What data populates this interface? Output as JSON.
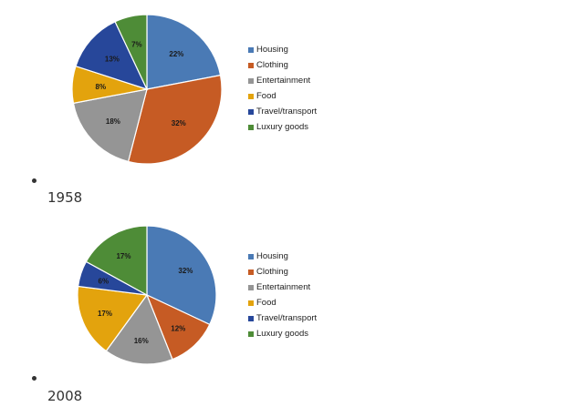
{
  "chart_data": [
    {
      "type": "pie",
      "caption": "1958",
      "categories": [
        "Housing",
        "Clothing",
        "Entertainment",
        "Food",
        "Travel/transport",
        "Luxury goods"
      ],
      "values": [
        22,
        32,
        18,
        8,
        13,
        7
      ],
      "labels": [
        "22%",
        "32%",
        "18%",
        "8%",
        "13%",
        "7%"
      ],
      "colors": [
        "#4a7ab5",
        "#c65b24",
        "#959595",
        "#e3a30d",
        "#27479a",
        "#4e8c37"
      ],
      "legend_position": "right"
    },
    {
      "type": "pie",
      "caption": "2008",
      "categories": [
        "Housing",
        "Clothing",
        "Entertainment",
        "Food",
        "Travel/transport",
        "Luxury goods"
      ],
      "values": [
        32,
        12,
        16,
        17,
        6,
        17
      ],
      "labels": [
        "32%",
        "12%",
        "16%",
        "17%",
        "6%",
        "17%"
      ],
      "colors": [
        "#4a7ab5",
        "#c65b24",
        "#959595",
        "#e3a30d",
        "#27479a",
        "#4e8c37"
      ],
      "legend_position": "right"
    }
  ]
}
